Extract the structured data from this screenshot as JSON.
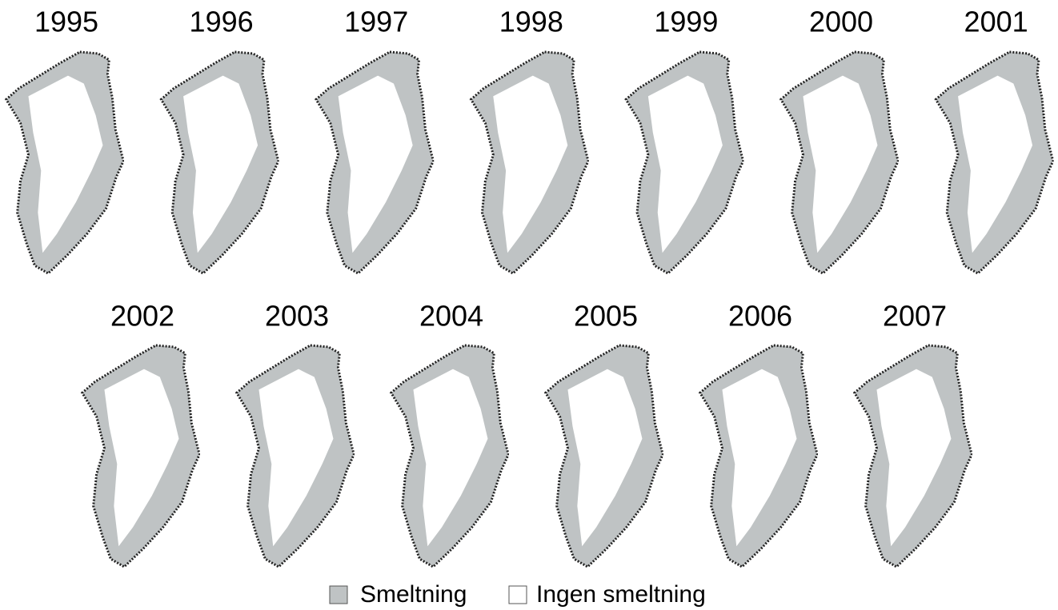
{
  "panels": [
    "1995",
    "1996",
    "1997",
    "1998",
    "1999",
    "2000",
    "2001",
    "2002",
    "2003",
    "2004",
    "2005",
    "2006",
    "2007"
  ],
  "legend": {
    "melt": "Smeltning",
    "no_melt": "Ingen smeltning"
  }
}
